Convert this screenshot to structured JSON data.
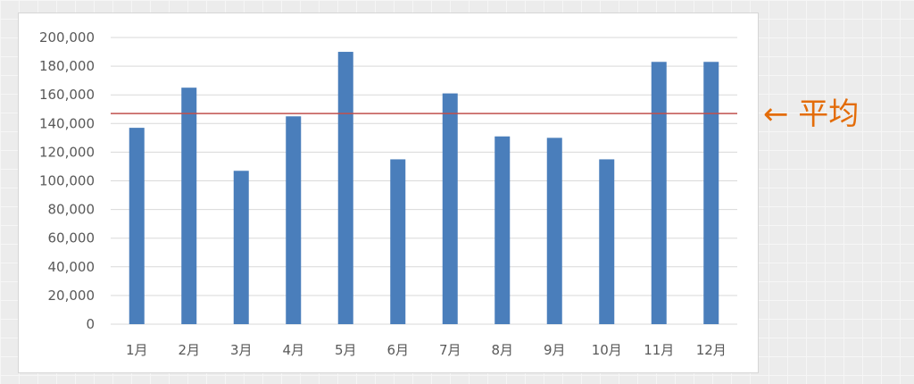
{
  "chart_data": {
    "type": "bar",
    "categories": [
      "1月",
      "2月",
      "3月",
      "4月",
      "5月",
      "6月",
      "7月",
      "8月",
      "9月",
      "10月",
      "11月",
      "12月"
    ],
    "values": [
      137000,
      165000,
      107000,
      145000,
      190000,
      115000,
      161000,
      131000,
      130000,
      115000,
      183000,
      183000
    ],
    "average": 147000,
    "ylim": [
      0,
      200000
    ],
    "yticks": [
      "0",
      "20,000",
      "40,000",
      "60,000",
      "80,000",
      "100,000",
      "120,000",
      "140,000",
      "160,000",
      "180,000",
      "200,000"
    ],
    "grid": true,
    "legend": "none",
    "title": "",
    "xlabel": "",
    "ylabel": ""
  },
  "annotation": {
    "text": "← 平均"
  },
  "colors": {
    "bar": "#4a7ebb",
    "average_line": "#c0504d",
    "annotation": "#e36c09",
    "grid": "#d9d9d9"
  }
}
